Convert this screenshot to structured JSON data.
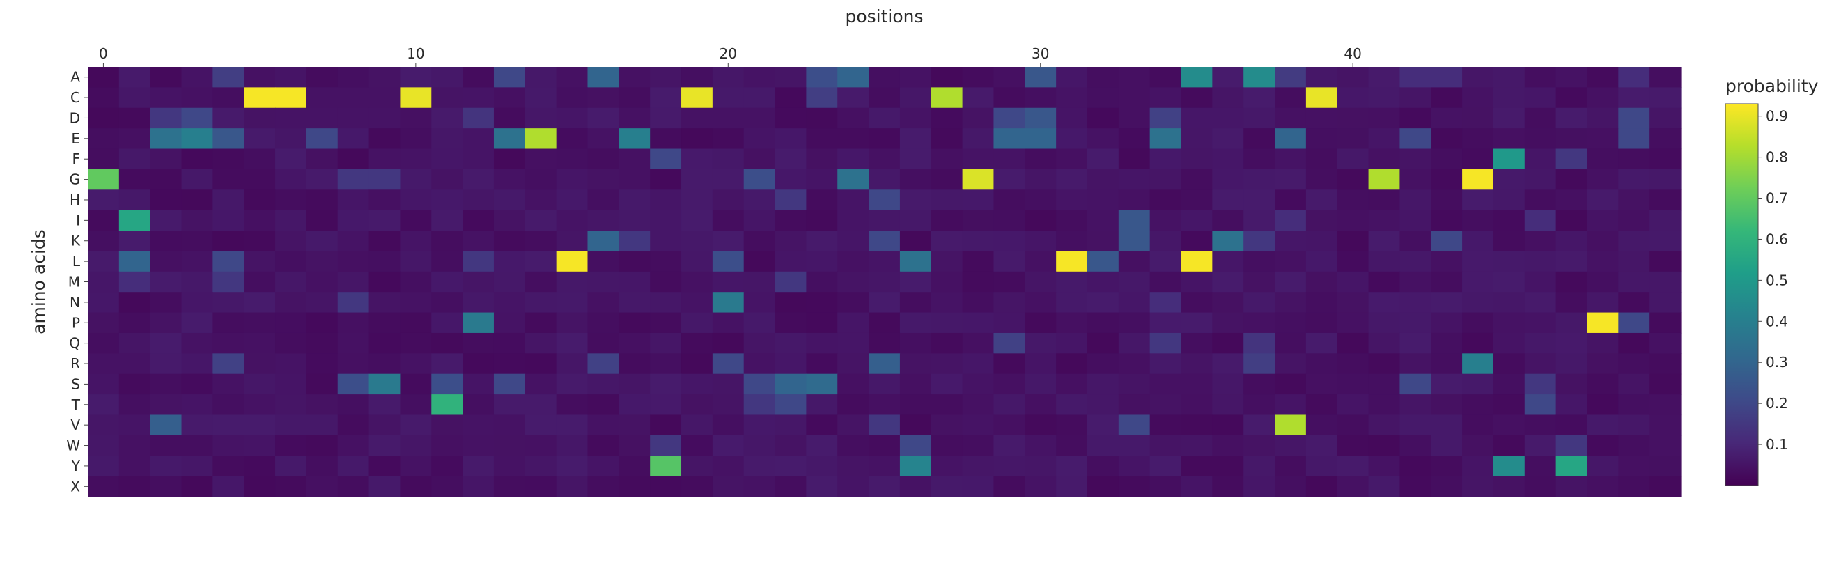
{
  "chart_data": {
    "type": "heatmap",
    "title": "",
    "xlabel": "positions",
    "ylabel": "amino acids",
    "colorbar_title": "probability",
    "colorscale": "viridis",
    "zlim": [
      0.0,
      0.93
    ],
    "colorbar_ticks": [
      "0.1",
      "0.2",
      "0.3",
      "0.4",
      "0.5",
      "0.6",
      "0.7",
      "0.8",
      "0.9"
    ],
    "x_ticks": [
      "0",
      "10",
      "20",
      "30",
      "40"
    ],
    "x": [
      0,
      1,
      2,
      3,
      4,
      5,
      6,
      7,
      8,
      9,
      10,
      11,
      12,
      13,
      14,
      15,
      16,
      17,
      18,
      19,
      20,
      21,
      22,
      23,
      24,
      25,
      26,
      27,
      28,
      29,
      30,
      31,
      32,
      33,
      34,
      35,
      36,
      37,
      38,
      39,
      40,
      41,
      42,
      43,
      44,
      45,
      46,
      47,
      48,
      49,
      50
    ],
    "y": [
      "A",
      "C",
      "D",
      "E",
      "F",
      "G",
      "H",
      "I",
      "K",
      "L",
      "M",
      "N",
      "P",
      "Q",
      "R",
      "S",
      "T",
      "V",
      "W",
      "Y",
      "X"
    ],
    "background_value": 0.02,
    "hot_cells": [
      {
        "aa": "C",
        "pos": 5,
        "p": 0.92
      },
      {
        "aa": "C",
        "pos": 6,
        "p": 0.92
      },
      {
        "aa": "C",
        "pos": 10,
        "p": 0.9
      },
      {
        "aa": "C",
        "pos": 19,
        "p": 0.9
      },
      {
        "aa": "C",
        "pos": 27,
        "p": 0.82
      },
      {
        "aa": "C",
        "pos": 39,
        "p": 0.9
      },
      {
        "aa": "C",
        "pos": 23,
        "p": 0.17
      },
      {
        "aa": "A",
        "pos": 16,
        "p": 0.3
      },
      {
        "aa": "A",
        "pos": 4,
        "p": 0.17
      },
      {
        "aa": "A",
        "pos": 13,
        "p": 0.2
      },
      {
        "aa": "A",
        "pos": 24,
        "p": 0.3
      },
      {
        "aa": "A",
        "pos": 23,
        "p": 0.22
      },
      {
        "aa": "A",
        "pos": 30,
        "p": 0.25
      },
      {
        "aa": "A",
        "pos": 35,
        "p": 0.45
      },
      {
        "aa": "A",
        "pos": 37,
        "p": 0.45
      },
      {
        "aa": "A",
        "pos": 38,
        "p": 0.16
      },
      {
        "aa": "A",
        "pos": 42,
        "p": 0.12
      },
      {
        "aa": "A",
        "pos": 43,
        "p": 0.12
      },
      {
        "aa": "A",
        "pos": 49,
        "p": 0.12
      },
      {
        "aa": "D",
        "pos": 2,
        "p": 0.15
      },
      {
        "aa": "D",
        "pos": 3,
        "p": 0.2
      },
      {
        "aa": "D",
        "pos": 12,
        "p": 0.14
      },
      {
        "aa": "D",
        "pos": 29,
        "p": 0.2
      },
      {
        "aa": "D",
        "pos": 30,
        "p": 0.25
      },
      {
        "aa": "D",
        "pos": 34,
        "p": 0.18
      },
      {
        "aa": "D",
        "pos": 49,
        "p": 0.2
      },
      {
        "aa": "E",
        "pos": 14,
        "p": 0.82
      },
      {
        "aa": "E",
        "pos": 2,
        "p": 0.35
      },
      {
        "aa": "E",
        "pos": 3,
        "p": 0.4
      },
      {
        "aa": "E",
        "pos": 4,
        "p": 0.25
      },
      {
        "aa": "E",
        "pos": 7,
        "p": 0.2
      },
      {
        "aa": "E",
        "pos": 13,
        "p": 0.35
      },
      {
        "aa": "E",
        "pos": 17,
        "p": 0.4
      },
      {
        "aa": "E",
        "pos": 29,
        "p": 0.3
      },
      {
        "aa": "E",
        "pos": 30,
        "p": 0.3
      },
      {
        "aa": "E",
        "pos": 34,
        "p": 0.35
      },
      {
        "aa": "E",
        "pos": 38,
        "p": 0.3
      },
      {
        "aa": "E",
        "pos": 42,
        "p": 0.2
      },
      {
        "aa": "E",
        "pos": 49,
        "p": 0.2
      },
      {
        "aa": "F",
        "pos": 18,
        "p": 0.2
      },
      {
        "aa": "F",
        "pos": 45,
        "p": 0.5
      },
      {
        "aa": "F",
        "pos": 47,
        "p": 0.15
      },
      {
        "aa": "G",
        "pos": 0,
        "p": 0.7
      },
      {
        "aa": "G",
        "pos": 28,
        "p": 0.88
      },
      {
        "aa": "G",
        "pos": 41,
        "p": 0.82
      },
      {
        "aa": "G",
        "pos": 44,
        "p": 0.92
      },
      {
        "aa": "G",
        "pos": 24,
        "p": 0.35
      },
      {
        "aa": "G",
        "pos": 21,
        "p": 0.22
      },
      {
        "aa": "G",
        "pos": 8,
        "p": 0.15
      },
      {
        "aa": "G",
        "pos": 9,
        "p": 0.15
      },
      {
        "aa": "H",
        "pos": 25,
        "p": 0.2
      },
      {
        "aa": "H",
        "pos": 22,
        "p": 0.15
      },
      {
        "aa": "I",
        "pos": 1,
        "p": 0.55
      },
      {
        "aa": "I",
        "pos": 33,
        "p": 0.25
      },
      {
        "aa": "I",
        "pos": 38,
        "p": 0.12
      },
      {
        "aa": "I",
        "pos": 46,
        "p": 0.12
      },
      {
        "aa": "K",
        "pos": 16,
        "p": 0.3
      },
      {
        "aa": "K",
        "pos": 17,
        "p": 0.15
      },
      {
        "aa": "K",
        "pos": 25,
        "p": 0.2
      },
      {
        "aa": "K",
        "pos": 33,
        "p": 0.25
      },
      {
        "aa": "K",
        "pos": 36,
        "p": 0.35
      },
      {
        "aa": "K",
        "pos": 37,
        "p": 0.15
      },
      {
        "aa": "K",
        "pos": 43,
        "p": 0.2
      },
      {
        "aa": "L",
        "pos": 15,
        "p": 0.92
      },
      {
        "aa": "L",
        "pos": 31,
        "p": 0.92
      },
      {
        "aa": "L",
        "pos": 35,
        "p": 0.92
      },
      {
        "aa": "L",
        "pos": 1,
        "p": 0.3
      },
      {
        "aa": "L",
        "pos": 4,
        "p": 0.2
      },
      {
        "aa": "L",
        "pos": 20,
        "p": 0.22
      },
      {
        "aa": "L",
        "pos": 26,
        "p": 0.35
      },
      {
        "aa": "L",
        "pos": 32,
        "p": 0.25
      },
      {
        "aa": "L",
        "pos": 12,
        "p": 0.15
      },
      {
        "aa": "M",
        "pos": 1,
        "p": 0.12
      },
      {
        "aa": "M",
        "pos": 4,
        "p": 0.15
      },
      {
        "aa": "M",
        "pos": 22,
        "p": 0.15
      },
      {
        "aa": "N",
        "pos": 20,
        "p": 0.38
      },
      {
        "aa": "N",
        "pos": 8,
        "p": 0.15
      },
      {
        "aa": "N",
        "pos": 34,
        "p": 0.12
      },
      {
        "aa": "P",
        "pos": 12,
        "p": 0.38
      },
      {
        "aa": "P",
        "pos": 48,
        "p": 0.92
      },
      {
        "aa": "P",
        "pos": 49,
        "p": 0.2
      },
      {
        "aa": "Q",
        "pos": 29,
        "p": 0.18
      },
      {
        "aa": "Q",
        "pos": 34,
        "p": 0.15
      },
      {
        "aa": "Q",
        "pos": 37,
        "p": 0.14
      },
      {
        "aa": "R",
        "pos": 4,
        "p": 0.18
      },
      {
        "aa": "R",
        "pos": 16,
        "p": 0.18
      },
      {
        "aa": "R",
        "pos": 20,
        "p": 0.2
      },
      {
        "aa": "R",
        "pos": 25,
        "p": 0.28
      },
      {
        "aa": "R",
        "pos": 37,
        "p": 0.17
      },
      {
        "aa": "R",
        "pos": 44,
        "p": 0.4
      },
      {
        "aa": "S",
        "pos": 9,
        "p": 0.38
      },
      {
        "aa": "S",
        "pos": 8,
        "p": 0.22
      },
      {
        "aa": "S",
        "pos": 11,
        "p": 0.22
      },
      {
        "aa": "S",
        "pos": 13,
        "p": 0.2
      },
      {
        "aa": "S",
        "pos": 21,
        "p": 0.2
      },
      {
        "aa": "S",
        "pos": 22,
        "p": 0.3
      },
      {
        "aa": "S",
        "pos": 23,
        "p": 0.32
      },
      {
        "aa": "S",
        "pos": 42,
        "p": 0.2
      },
      {
        "aa": "S",
        "pos": 46,
        "p": 0.15
      },
      {
        "aa": "T",
        "pos": 11,
        "p": 0.6
      },
      {
        "aa": "T",
        "pos": 21,
        "p": 0.15
      },
      {
        "aa": "T",
        "pos": 22,
        "p": 0.2
      },
      {
        "aa": "T",
        "pos": 46,
        "p": 0.2
      },
      {
        "aa": "V",
        "pos": 2,
        "p": 0.28
      },
      {
        "aa": "V",
        "pos": 38,
        "p": 0.82
      },
      {
        "aa": "V",
        "pos": 33,
        "p": 0.2
      },
      {
        "aa": "V",
        "pos": 25,
        "p": 0.15
      },
      {
        "aa": "W",
        "pos": 18,
        "p": 0.15
      },
      {
        "aa": "W",
        "pos": 26,
        "p": 0.2
      },
      {
        "aa": "W",
        "pos": 47,
        "p": 0.15
      },
      {
        "aa": "Y",
        "pos": 18,
        "p": 0.68
      },
      {
        "aa": "Y",
        "pos": 26,
        "p": 0.42
      },
      {
        "aa": "Y",
        "pos": 45,
        "p": 0.45
      },
      {
        "aa": "Y",
        "pos": 47,
        "p": 0.55
      }
    ]
  }
}
